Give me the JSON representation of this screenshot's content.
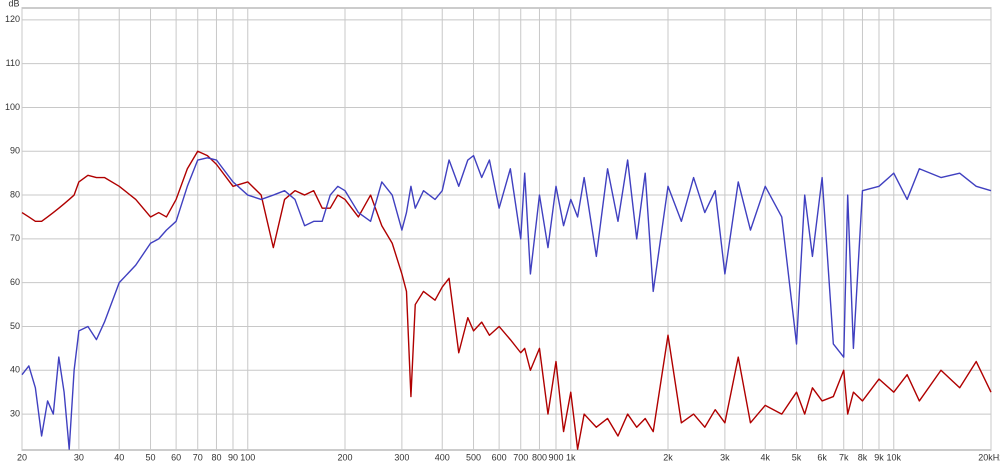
{
  "chart_data": {
    "type": "line",
    "ylabel": "dB",
    "xscale": "log",
    "grid": true,
    "xlim": [
      20,
      20000
    ],
    "ylim": [
      21.8,
      122.7
    ],
    "yticks": [
      30,
      40,
      50,
      60,
      70,
      80,
      90,
      100,
      110,
      120
    ],
    "xticks": [
      20,
      30,
      40,
      50,
      60,
      70,
      80,
      90,
      100,
      200,
      300,
      400,
      500,
      600,
      700,
      800,
      900,
      {
        "value": 1000,
        "label": "1k"
      },
      {
        "value": 2000,
        "label": "2k"
      },
      {
        "value": 3000,
        "label": "3k"
      },
      {
        "value": 4000,
        "label": "4k"
      },
      {
        "value": 5000,
        "label": "5k"
      },
      {
        "value": 6000,
        "label": "6k"
      },
      {
        "value": 7000,
        "label": "7k"
      },
      {
        "value": 8000,
        "label": "8k"
      },
      {
        "value": 9000,
        "label": "9k"
      },
      {
        "value": 10000,
        "label": "10k"
      },
      {
        "value": 20000,
        "label": "20kHz"
      }
    ],
    "x": [
      20,
      21,
      22,
      23,
      24,
      25,
      26,
      27,
      28,
      29,
      30,
      32,
      34,
      36,
      40,
      45,
      50,
      53,
      56,
      60,
      65,
      70,
      75,
      80,
      90,
      100,
      110,
      120,
      130,
      140,
      150,
      160,
      170,
      180,
      190,
      200,
      220,
      240,
      260,
      280,
      300,
      310,
      320,
      330,
      350,
      380,
      400,
      420,
      450,
      480,
      500,
      530,
      560,
      600,
      650,
      700,
      720,
      750,
      800,
      850,
      900,
      950,
      1000,
      1050,
      1100,
      1200,
      1300,
      1400,
      1500,
      1600,
      1700,
      1800,
      2000,
      2200,
      2400,
      2600,
      2800,
      3000,
      3300,
      3600,
      4000,
      4500,
      5000,
      5300,
      5600,
      6000,
      6500,
      7000,
      7200,
      7500,
      8000,
      9000,
      10000,
      11000,
      12000,
      14000,
      16000,
      18000,
      20000
    ],
    "series": [
      {
        "color": "#b00000",
        "values": [
          76,
          75,
          74,
          74,
          75,
          76,
          77,
          78,
          79,
          80,
          83,
          84.5,
          84,
          84,
          82,
          79,
          75,
          76,
          75,
          79,
          86,
          90,
          89,
          87,
          82,
          83,
          80,
          68,
          79,
          81,
          80,
          81,
          77,
          77,
          80,
          79,
          75,
          80,
          73,
          69,
          62,
          58,
          34,
          55,
          58,
          56,
          59,
          61,
          44,
          52,
          49,
          51,
          48,
          50,
          47,
          44,
          45,
          40,
          45,
          30,
          42,
          26,
          35,
          22,
          30,
          27,
          29,
          25,
          30,
          27,
          29,
          26,
          48,
          28,
          30,
          27,
          31,
          28,
          43,
          28,
          32,
          30,
          35,
          30,
          36,
          33,
          34,
          40,
          30,
          35,
          33,
          38,
          35,
          39,
          33,
          40,
          36,
          42,
          35
        ]
      },
      {
        "color": "#4040c0",
        "values": [
          39,
          41,
          36,
          25,
          33,
          30,
          43,
          35,
          22,
          40,
          49,
          50,
          47,
          51,
          60,
          64,
          69,
          70,
          72,
          74,
          82,
          88,
          88.5,
          88,
          83,
          80,
          79,
          80,
          81,
          79,
          73,
          74,
          74,
          80,
          82,
          81,
          76,
          74,
          83,
          80,
          72,
          76,
          82,
          77,
          81,
          79,
          81,
          88,
          82,
          88,
          89,
          84,
          88,
          77,
          86,
          70,
          85,
          62,
          80,
          68,
          82,
          73,
          79,
          75,
          84,
          66,
          86,
          74,
          88,
          70,
          85,
          58,
          82,
          74,
          84,
          76,
          81,
          62,
          83,
          72,
          82,
          75,
          46,
          80,
          66,
          84,
          46,
          43,
          80,
          45,
          81,
          82,
          85,
          79,
          86,
          84,
          85,
          82,
          81
        ]
      }
    ]
  }
}
